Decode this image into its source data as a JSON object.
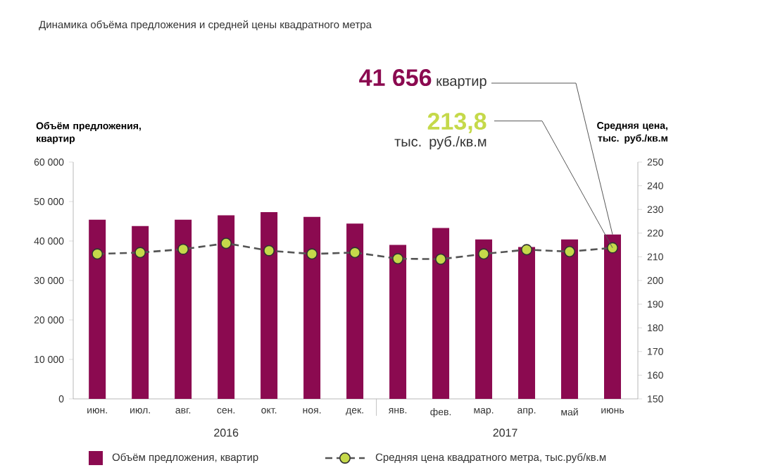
{
  "chart_data": {
    "type": "bar",
    "title": "Динамика объёма предложения и средней цены квадратного метра",
    "categories": [
      "июн.",
      "июл.",
      "авг.",
      "сен.",
      "окт.",
      "ноя.",
      "дек.",
      "янв.",
      "фев.",
      "мар.",
      "апр.",
      "май",
      "июнь"
    ],
    "series": [
      {
        "name": "Объём предложения, квартир",
        "color": "#8b0a50",
        "values": [
          45400,
          43800,
          45400,
          46500,
          47300,
          46100,
          44400,
          39000,
          43300,
          40400,
          38500,
          40400,
          41656
        ]
      },
      {
        "name": "Средняя цена квадратного метра, тыс.руб/кв.м",
        "type": "line",
        "axis": "y2",
        "color": "#c5d94a",
        "marker": "circle",
        "line_style": "dashed",
        "values": [
          211.2,
          211.8,
          213.2,
          215.7,
          212.6,
          211.2,
          211.8,
          209.2,
          209.0,
          211.2,
          213.0,
          212.2,
          213.8
        ]
      }
    ],
    "ylabel": "Объём предложения, квартир",
    "y2label": "Средняя цена, тыс. руб./кв.м",
    "ylim": [
      0,
      60000
    ],
    "yticks": [
      {
        "value": 0,
        "label": "0"
      },
      {
        "value": 10000,
        "label": "10 000"
      },
      {
        "value": 20000,
        "label": "20 000"
      },
      {
        "value": 30000,
        "label": "30 000"
      },
      {
        "value": 40000,
        "label": "40 000"
      },
      {
        "value": 50000,
        "label": "50 000"
      },
      {
        "value": 60000,
        "label": "60 000"
      }
    ],
    "y2lim": [
      150,
      250
    ],
    "y2ticks": [
      150,
      160,
      170,
      180,
      190,
      200,
      210,
      220,
      230,
      240,
      250
    ],
    "annotations": [
      {
        "text": "**41 656** квартир",
        "x": "июнь",
        "y": 41656
      },
      "**213,8** тыс. руб./кв.м",
      "2016",
      "2017"
    ],
    "legend": "bottom",
    "grid": false
  }
}
